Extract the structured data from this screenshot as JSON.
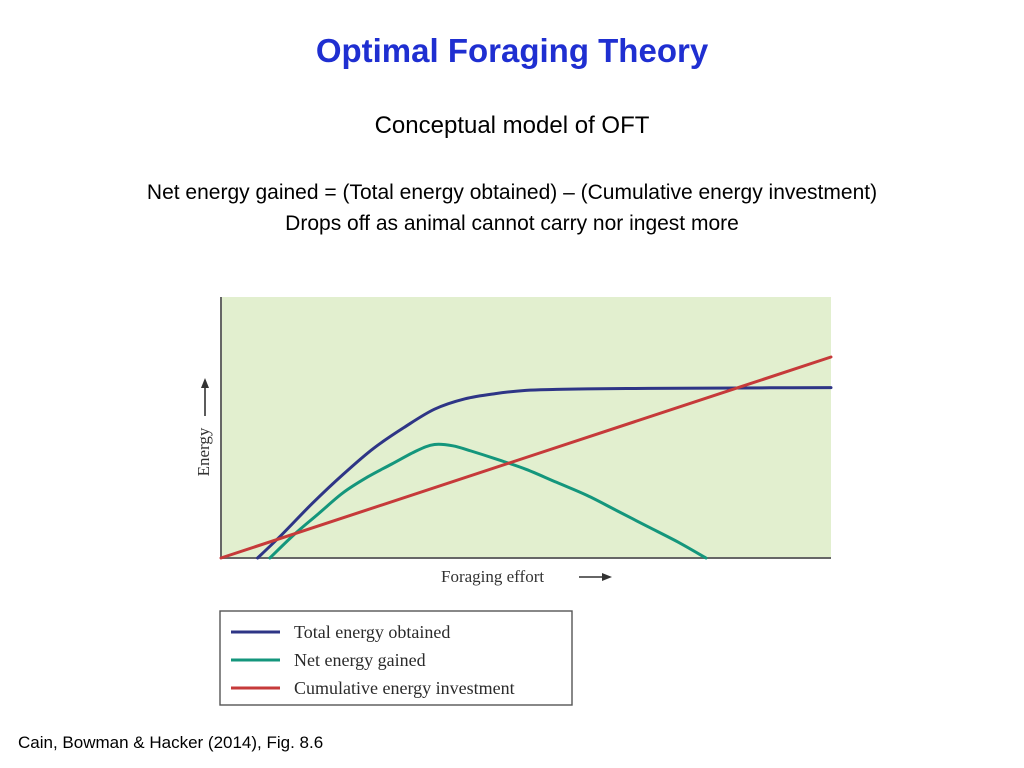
{
  "slide": {
    "title": "Optimal Foraging Theory",
    "subtitle": "Conceptual model of OFT",
    "line1": "Net energy gained = (Total energy obtained) – (Cumulative energy investment)",
    "line2": "Drops off as animal cannot carry nor ingest more",
    "citation": "Cain, Bowman & Hacker (2014), Fig. 8.6"
  },
  "chart_data": {
    "type": "line",
    "xlabel": "Foraging effort",
    "ylabel": "Energy",
    "xlim": [
      0,
      100
    ],
    "ylim": [
      0,
      100
    ],
    "grid": false,
    "legend_position": "below",
    "background_color": "#e2efcf",
    "series": [
      {
        "name": "Total energy obtained",
        "color": "#2e3586",
        "x": [
          6,
          10,
          15,
          20,
          25,
          30,
          35,
          40,
          45,
          50,
          55,
          60,
          70,
          80,
          90,
          100
        ],
        "y": [
          0,
          9,
          21,
          32,
          42,
          50,
          57,
          61,
          63,
          64.2,
          64.6,
          64.8,
          65,
          65.1,
          65.2,
          65.3
        ]
      },
      {
        "name": "Net energy gained",
        "color": "#14967c",
        "x": [
          8,
          12,
          16,
          20,
          24,
          28,
          32,
          35,
          38,
          41,
          45,
          50,
          55,
          60,
          65,
          70,
          75,
          79.5
        ],
        "y": [
          0,
          9,
          17,
          25,
          31,
          36,
          41,
          43.5,
          43,
          41,
          38,
          34,
          29,
          24,
          18,
          12,
          6,
          0
        ]
      },
      {
        "name": "Cumulative energy investment",
        "color": "#c63a3a",
        "x": [
          0,
          100
        ],
        "y": [
          0,
          77
        ]
      }
    ]
  }
}
